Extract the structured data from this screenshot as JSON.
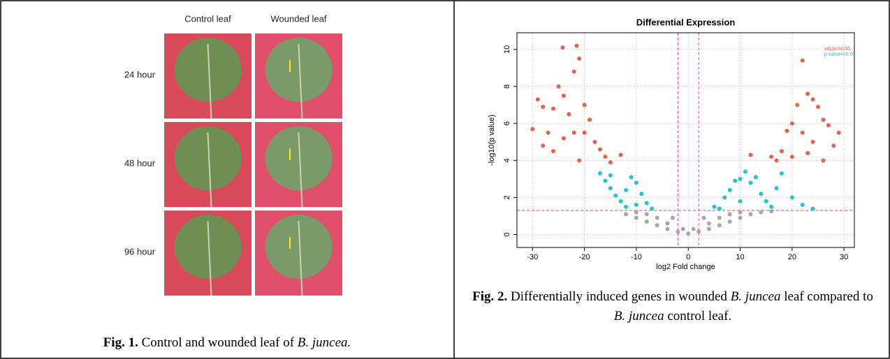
{
  "figure1": {
    "column_labels": [
      "Control leaf",
      "Wounded leaf"
    ],
    "row_labels": [
      "24 hour",
      "48 hour",
      "96 hour"
    ],
    "caption": [
      {
        "text": "Fig. 1.",
        "style": "bold"
      },
      {
        "text": " Control and wounded leaf of ",
        "style": "normal"
      },
      {
        "text": "B. juncea.",
        "style": "italic"
      }
    ]
  },
  "figure2_caption": [
    {
      "text": "Fig. 2.",
      "style": "bold"
    },
    {
      "text": " Differentially induced genes in wounded ",
      "style": "normal"
    },
    {
      "text": "B. juncea",
      "style": "italic"
    },
    {
      "text": " leaf compared to ",
      "style": "normal"
    },
    {
      "text": "B. juncea",
      "style": "italic"
    },
    {
      "text": " control leaf.",
      "style": "normal"
    }
  ],
  "chart_data": {
    "type": "scatter",
    "title": "Differential Expression",
    "x_label": "log2 Fold change",
    "y_label": "-log10(p value)",
    "xlim": [
      -33,
      32
    ],
    "ylim": [
      -0.7,
      10.9
    ],
    "xticks": [
      -30,
      -20,
      -10,
      0,
      10,
      20,
      30
    ],
    "yticks": [
      0,
      2,
      4,
      6,
      8,
      10
    ],
    "grid": true,
    "vlines": [
      -2,
      2
    ],
    "hline": 1.3,
    "threshold_color": "#e8487a",
    "grid_color": "#f0a0b8",
    "series": [
      {
        "name": "adj.p<=0.05",
        "color": "#e8624a",
        "x": [
          -30,
          -29,
          -28,
          -27,
          -26,
          -25,
          -24.2,
          -24,
          -23,
          -22,
          -22,
          -21.5,
          -21,
          -20,
          -19,
          -18,
          -17,
          -16,
          -15,
          -26,
          -28,
          -21,
          -13,
          -24,
          -20,
          22,
          23,
          24,
          25,
          21,
          20,
          19,
          18,
          17,
          27,
          29,
          28,
          26,
          22,
          24,
          20,
          16,
          12,
          23,
          26
        ],
        "values": [
          5.7,
          7.3,
          6.9,
          5.5,
          6.8,
          8.0,
          10.1,
          7.5,
          6.5,
          8.8,
          5.5,
          10.2,
          9.5,
          7.0,
          6.2,
          5.0,
          4.6,
          4.2,
          3.9,
          4.5,
          4.8,
          4.0,
          4.3,
          5.2,
          5.5,
          9.4,
          7.6,
          7.3,
          6.9,
          7.0,
          6.0,
          5.6,
          4.5,
          4.0,
          5.9,
          5.5,
          4.8,
          6.2,
          5.5,
          5.0,
          4.2,
          4.2,
          4.3,
          4.4,
          4.0
        ]
      },
      {
        "name": "p value<=0.05",
        "color": "#1ec8cc",
        "x": [
          -17,
          -16,
          -15,
          -14,
          -13,
          -12,
          -11,
          -10,
          -9,
          -8,
          -7,
          -12,
          -10,
          -15,
          6,
          7,
          8,
          9,
          10,
          11,
          12,
          13,
          14,
          15,
          16,
          17,
          18,
          20,
          22,
          24,
          10,
          5
        ],
        "values": [
          3.3,
          2.9,
          2.5,
          2.1,
          1.8,
          1.5,
          3.1,
          2.8,
          2.2,
          1.7,
          1.4,
          2.4,
          1.6,
          3.2,
          1.4,
          2.0,
          2.4,
          2.9,
          3.0,
          3.4,
          2.8,
          3.1,
          2.2,
          1.8,
          1.5,
          2.5,
          3.3,
          2.0,
          1.6,
          1.4,
          1.8,
          1.5
        ]
      },
      {
        "color": "#a8a8a8",
        "x": [
          -12,
          -10,
          -8,
          -6,
          -4,
          -2,
          0,
          2,
          4,
          6,
          8,
          10,
          12,
          14,
          -6,
          -8,
          6,
          8,
          -4,
          4,
          -10,
          10,
          -3,
          3,
          16,
          -1,
          1
        ],
        "values": [
          1.1,
          0.9,
          0.7,
          0.5,
          0.3,
          0.15,
          0.05,
          0.15,
          0.3,
          0.5,
          0.7,
          0.9,
          1.1,
          1.2,
          0.9,
          1.1,
          0.9,
          1.1,
          0.6,
          0.6,
          1.2,
          1.2,
          0.9,
          0.9,
          1.25,
          0.3,
          0.3
        ]
      }
    ]
  }
}
